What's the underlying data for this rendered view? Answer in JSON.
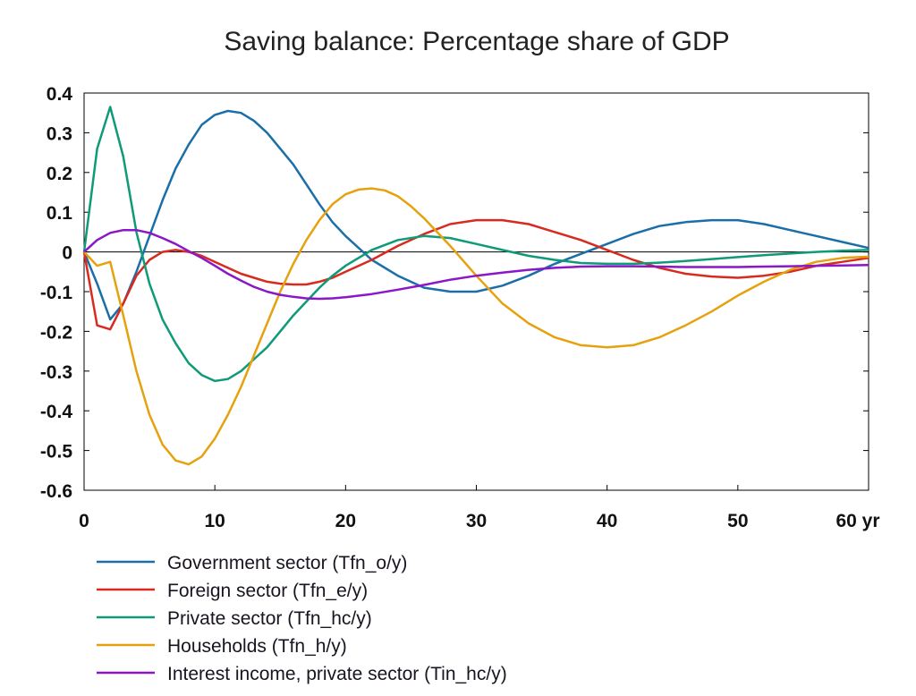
{
  "chart_data": {
    "type": "line",
    "title": "Saving balance: Percentage share of GDP",
    "x_unit_label": "yr",
    "xlim": [
      0,
      60
    ],
    "ylim": [
      -0.6,
      0.4
    ],
    "x_ticks": [
      0,
      10,
      20,
      30,
      40,
      50,
      60
    ],
    "x_tick_labels": [
      "0",
      "10",
      "20",
      "30",
      "40",
      "50",
      "60 yr"
    ],
    "y_ticks": [
      0.4,
      0.3,
      0.2,
      0.1,
      0,
      -0.1,
      -0.2,
      -0.3,
      -0.4,
      -0.5,
      -0.6
    ],
    "y_tick_labels": [
      "0.4",
      "0.3",
      "0.2",
      "0.1",
      "0",
      "-0.1",
      "-0.2",
      "-0.3",
      "-0.4",
      "-0.5",
      "-0.6"
    ],
    "grid": false,
    "zero_line": true,
    "legend_position": "bottom",
    "series": [
      {
        "name": "Government sector (Tfn_o/y)",
        "color": "#1b6fa8",
        "x": [
          0,
          1,
          2,
          3,
          4,
          5,
          6,
          7,
          8,
          9,
          10,
          11,
          12,
          13,
          14,
          15,
          16,
          17,
          18,
          19,
          20,
          22,
          24,
          26,
          28,
          30,
          32,
          34,
          36,
          38,
          40,
          42,
          44,
          46,
          48,
          50,
          52,
          54,
          56,
          58,
          60
        ],
        "y": [
          0,
          -0.08,
          -0.17,
          -0.13,
          -0.05,
          0.04,
          0.13,
          0.21,
          0.27,
          0.32,
          0.345,
          0.355,
          0.35,
          0.33,
          0.3,
          0.26,
          0.22,
          0.17,
          0.12,
          0.075,
          0.04,
          -0.02,
          -0.06,
          -0.09,
          -0.1,
          -0.1,
          -0.085,
          -0.06,
          -0.03,
          -0.005,
          0.02,
          0.045,
          0.065,
          0.075,
          0.08,
          0.08,
          0.07,
          0.055,
          0.04,
          0.025,
          0.01
        ]
      },
      {
        "name": "Foreign sector (Tfn_e/y)",
        "color": "#d82b1f",
        "x": [
          0,
          1,
          2,
          3,
          4,
          5,
          6,
          7,
          8,
          9,
          10,
          11,
          12,
          13,
          14,
          15,
          16,
          17,
          18,
          19,
          20,
          22,
          24,
          26,
          28,
          30,
          32,
          34,
          36,
          38,
          40,
          42,
          44,
          46,
          48,
          50,
          52,
          54,
          56,
          58,
          60
        ],
        "y": [
          0,
          -0.185,
          -0.195,
          -0.13,
          -0.06,
          -0.02,
          0,
          0.005,
          0,
          -0.01,
          -0.025,
          -0.04,
          -0.055,
          -0.065,
          -0.075,
          -0.08,
          -0.082,
          -0.082,
          -0.075,
          -0.065,
          -0.05,
          -0.02,
          0.015,
          0.045,
          0.07,
          0.08,
          0.08,
          0.07,
          0.05,
          0.03,
          0.005,
          -0.02,
          -0.04,
          -0.055,
          -0.062,
          -0.065,
          -0.06,
          -0.05,
          -0.035,
          -0.025,
          -0.015
        ]
      },
      {
        "name": "Private sector (Tfn_hc/y)",
        "color": "#0f9a78",
        "x": [
          0,
          1,
          2,
          3,
          4,
          5,
          6,
          7,
          8,
          9,
          10,
          11,
          12,
          13,
          14,
          15,
          16,
          17,
          18,
          19,
          20,
          22,
          24,
          26,
          28,
          30,
          32,
          34,
          36,
          38,
          40,
          42,
          44,
          46,
          48,
          50,
          52,
          54,
          56,
          58,
          60
        ],
        "y": [
          0,
          0.26,
          0.365,
          0.24,
          0.05,
          -0.08,
          -0.17,
          -0.23,
          -0.28,
          -0.31,
          -0.325,
          -0.32,
          -0.3,
          -0.27,
          -0.24,
          -0.2,
          -0.16,
          -0.125,
          -0.09,
          -0.06,
          -0.035,
          0.005,
          0.03,
          0.04,
          0.035,
          0.02,
          0.005,
          -0.01,
          -0.02,
          -0.028,
          -0.03,
          -0.03,
          -0.027,
          -0.023,
          -0.018,
          -0.013,
          -0.008,
          -0.004,
          0,
          0.003,
          0.005
        ]
      },
      {
        "name": "Households (Tfn_h/y)",
        "color": "#e5a20e",
        "x": [
          0,
          1,
          2,
          3,
          4,
          5,
          6,
          7,
          8,
          9,
          10,
          11,
          12,
          13,
          14,
          15,
          16,
          17,
          18,
          19,
          20,
          21,
          22,
          23,
          24,
          25,
          26,
          27,
          28,
          30,
          32,
          34,
          36,
          38,
          40,
          42,
          44,
          46,
          48,
          50,
          52,
          54,
          56,
          58,
          60
        ],
        "y": [
          0,
          -0.035,
          -0.025,
          -0.16,
          -0.3,
          -0.41,
          -0.485,
          -0.525,
          -0.535,
          -0.515,
          -0.47,
          -0.41,
          -0.34,
          -0.26,
          -0.18,
          -0.1,
          -0.03,
          0.03,
          0.08,
          0.12,
          0.145,
          0.157,
          0.16,
          0.155,
          0.14,
          0.115,
          0.085,
          0.05,
          0.015,
          -0.06,
          -0.13,
          -0.18,
          -0.215,
          -0.235,
          -0.24,
          -0.235,
          -0.215,
          -0.185,
          -0.15,
          -0.11,
          -0.075,
          -0.045,
          -0.025,
          -0.015,
          -0.012
        ]
      },
      {
        "name": "Interest income, private sector (Tin_hc/y)",
        "color": "#8a17c8",
        "x": [
          0,
          1,
          2,
          3,
          4,
          5,
          6,
          7,
          8,
          9,
          10,
          11,
          12,
          13,
          14,
          15,
          16,
          17,
          18,
          19,
          20,
          22,
          24,
          26,
          28,
          30,
          32,
          34,
          36,
          38,
          40,
          42,
          44,
          46,
          48,
          50,
          52,
          54,
          56,
          58,
          60
        ],
        "y": [
          0,
          0.03,
          0.048,
          0.055,
          0.055,
          0.048,
          0.035,
          0.02,
          0.002,
          -0.015,
          -0.035,
          -0.055,
          -0.072,
          -0.088,
          -0.1,
          -0.108,
          -0.113,
          -0.117,
          -0.118,
          -0.117,
          -0.114,
          -0.106,
          -0.095,
          -0.083,
          -0.07,
          -0.06,
          -0.052,
          -0.045,
          -0.04,
          -0.037,
          -0.036,
          -0.036,
          -0.037,
          -0.038,
          -0.038,
          -0.038,
          -0.037,
          -0.036,
          -0.035,
          -0.034,
          -0.033
        ]
      }
    ]
  }
}
